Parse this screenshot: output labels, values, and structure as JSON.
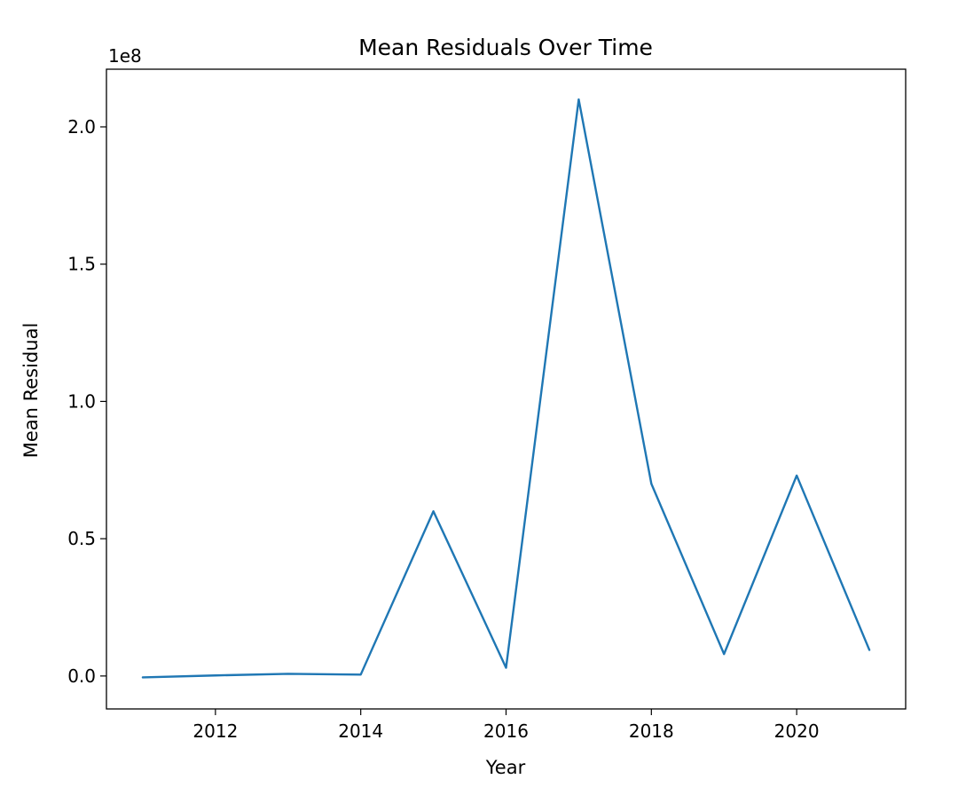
{
  "chart_data": {
    "type": "line",
    "title": "Mean Residuals Over Time",
    "xlabel": "Year",
    "ylabel": "Mean Residual",
    "y_offset_label": "1e8",
    "y_scale_factor": 100000000,
    "xlim": [
      2010.5,
      2021.5
    ],
    "ylim": [
      -12000000,
      221000000
    ],
    "x_ticks": [
      2012,
      2014,
      2016,
      2018,
      2020
    ],
    "x_tick_labels": [
      "2012",
      "2014",
      "2016",
      "2018",
      "2020"
    ],
    "y_ticks": [
      0,
      50000000,
      100000000,
      150000000,
      200000000
    ],
    "y_tick_labels": [
      "0.0",
      "0.5",
      "1.0",
      "1.5",
      "2.0"
    ],
    "grid": false,
    "legend": "none",
    "series": [
      {
        "color": "#1f77b4",
        "x": [
          2011,
          2012,
          2013,
          2014,
          2015,
          2016,
          2017,
          2018,
          2019,
          2020,
          2021
        ],
        "y": [
          -500000,
          200000,
          800000,
          500000,
          60000000,
          3000000,
          210000000,
          70000000,
          8000000,
          73000000,
          9500000
        ]
      }
    ]
  }
}
